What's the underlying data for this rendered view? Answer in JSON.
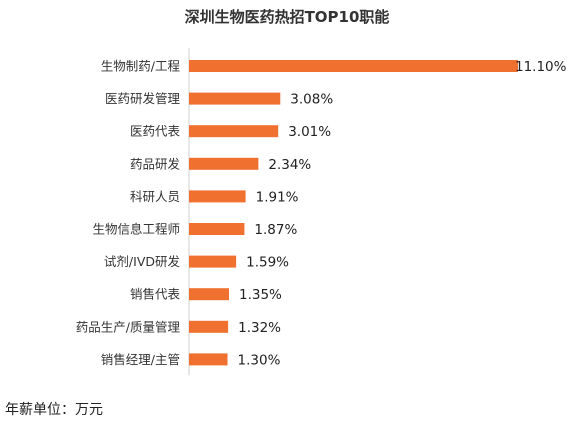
{
  "chart_data": {
    "type": "bar",
    "orientation": "horizontal",
    "title": "深圳生物医药热招TOP10职能",
    "categories": [
      "生物制药/工程",
      "医药研发管理",
      "医药代表",
      "药品研发",
      "科研人员",
      "生物信息工程师",
      "试剂/IVD研发",
      "销售代表",
      "药品生产/质量管理",
      "销售经理/主管"
    ],
    "values": [
      11.1,
      3.08,
      3.01,
      2.34,
      1.91,
      1.87,
      1.59,
      1.35,
      1.32,
      1.3
    ],
    "value_labels": [
      "11.10%",
      "3.08%",
      "3.01%",
      "2.34%",
      "1.91%",
      "1.87%",
      "1.59%",
      "1.35%",
      "1.32%",
      "1.30%"
    ],
    "bar_color": "#F07030",
    "grid": false,
    "legend": "none",
    "xlim": [
      0,
      11.1
    ]
  },
  "footer": {
    "unit_note": "年薪单位：万元"
  }
}
